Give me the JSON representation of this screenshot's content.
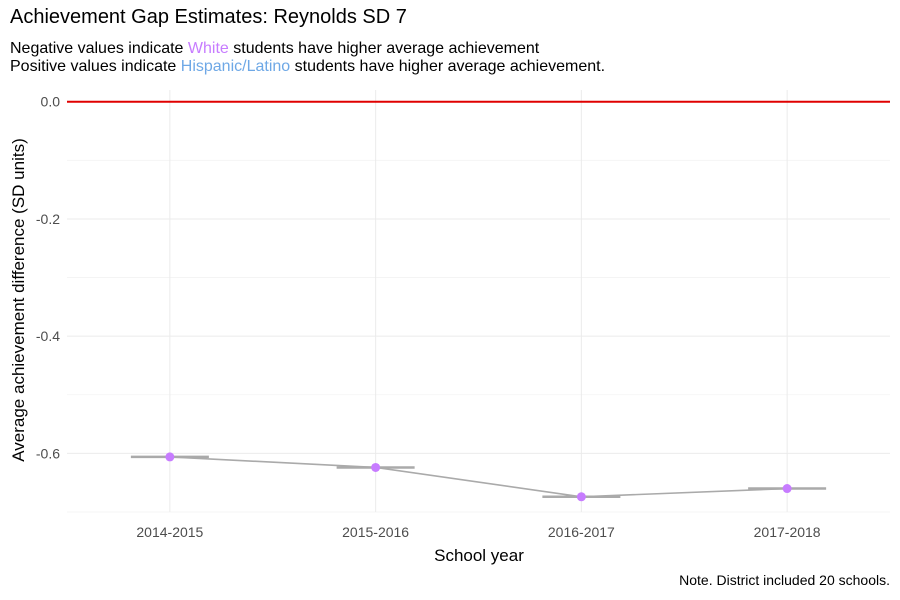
{
  "title": "Achievement Gap Estimates: Reynolds SD 7",
  "subtitle": {
    "line1_prefix": "Negative values indicate ",
    "line1_group": "White",
    "line1_suffix": " students have higher average achievement",
    "line2_prefix": "Positive values indicate ",
    "line2_group": "Hispanic/Latino",
    "line2_suffix": " students have higher average achievement."
  },
  "note": "Note. District included 20 schools.",
  "colors": {
    "point": "#c77cff",
    "line": "#aaaaaa",
    "reference_line": "#e00000",
    "white_group": "#c77cff",
    "hispanic_group": "#6ea8e6",
    "grid": "#ebebeb"
  },
  "chart_data": {
    "type": "line",
    "title": "Achievement Gap Estimates: Reynolds SD 7",
    "xlabel": "School year",
    "ylabel": "Average achievement difference (SD units)",
    "categories": [
      "2014-2015",
      "2015-2016",
      "2016-2017",
      "2017-2018"
    ],
    "values": [
      -0.606,
      -0.624,
      -0.674,
      -0.66
    ],
    "ylim": [
      -0.7,
      0.02
    ],
    "yticks": [
      0.0,
      -0.2,
      -0.4,
      -0.6
    ],
    "ytick_labels": [
      "0.0",
      "-0.2",
      "-0.4",
      "-0.6"
    ],
    "reference_line_y": 0.0,
    "grid": true,
    "legend": "none"
  }
}
